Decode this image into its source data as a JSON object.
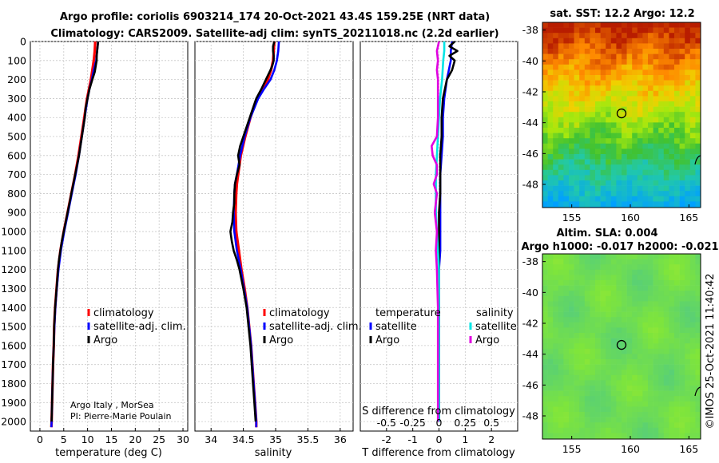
{
  "title_line1": "Argo profile: coriolis 6903214_174 20-Oct-2021 43.4S 159.25E (NRT data)",
  "title_line2": "Climatology: CARS2009. Satellite-adj clim: synTS_20211018.nc (2.2d earlier)",
  "depth_ticks": [
    "0",
    "100",
    "200",
    "300",
    "400",
    "500",
    "600",
    "700",
    "800",
    "900",
    "1000",
    "1100",
    "1200",
    "1300",
    "1400",
    "1500",
    "1600",
    "1700",
    "1800",
    "1900",
    "2000"
  ],
  "credits": {
    "line1": "Argo Italy , MorSea",
    "line2": "PI: Pierre-Marie Poulain"
  },
  "colors": {
    "climatology": "#ff0000",
    "satellite": "#0000ff",
    "argo": "#000000",
    "t_diff": "#00e5e5",
    "s_diff": "#e000e0"
  },
  "chart_data": [
    {
      "type": "line",
      "name": "temperature-profile",
      "xlabel": "temperature (deg C)",
      "ylabel": "depth",
      "xlim": [
        -2,
        31
      ],
      "ylim": [
        2050,
        0
      ],
      "xticks": [
        "0",
        "5",
        "10",
        "15",
        "20",
        "25",
        "30"
      ],
      "legend": [
        "climatology",
        "satellite-adj. clim.",
        "Argo"
      ],
      "series": [
        {
          "name": "climatology",
          "depth": [
            0,
            50,
            100,
            150,
            200,
            250,
            300,
            350,
            400,
            500,
            600,
            700,
            800,
            900,
            1000,
            1100,
            1200,
            1300,
            1400,
            1500,
            1600,
            1700,
            1800,
            1900,
            2000,
            2030
          ],
          "values": [
            11.6,
            11.5,
            11.3,
            11.0,
            10.7,
            10.3,
            9.9,
            9.6,
            9.3,
            8.7,
            8.1,
            7.4,
            6.6,
            5.8,
            5.0,
            4.3,
            3.8,
            3.5,
            3.2,
            3.0,
            2.9,
            2.75,
            2.65,
            2.55,
            2.45,
            2.4
          ]
        },
        {
          "name": "satellite-adj. clim.",
          "depth": [
            0,
            50,
            100,
            150,
            200,
            250,
            300,
            350,
            400,
            500,
            600,
            700,
            800,
            900,
            1000,
            1100,
            1200,
            1300,
            1400,
            1500,
            1600,
            1700,
            1800,
            1900,
            2000,
            2030
          ],
          "values": [
            12.2,
            12.0,
            11.8,
            11.3,
            10.9,
            10.4,
            10.0,
            9.7,
            9.4,
            8.8,
            8.2,
            7.5,
            6.7,
            5.9,
            5.1,
            4.4,
            3.9,
            3.55,
            3.25,
            3.05,
            2.9,
            2.75,
            2.65,
            2.55,
            2.45,
            2.4
          ]
        },
        {
          "name": "Argo",
          "depth": [
            0,
            25,
            50,
            75,
            100,
            130,
            160,
            200,
            250,
            300,
            350,
            400,
            450,
            500,
            550,
            600,
            650,
            700,
            750,
            800,
            850,
            900,
            950,
            1000,
            1050,
            1100,
            1150,
            1200,
            1300,
            1400,
            1500,
            1600,
            1700,
            1800,
            1900,
            2000
          ],
          "values": [
            12.2,
            12.1,
            12.0,
            11.9,
            11.9,
            11.7,
            11.5,
            11.0,
            10.4,
            10.0,
            9.6,
            9.4,
            9.1,
            8.8,
            8.5,
            8.2,
            7.8,
            7.4,
            7.0,
            6.6,
            6.2,
            5.8,
            5.4,
            5.0,
            4.6,
            4.3,
            4.0,
            3.8,
            3.5,
            3.2,
            3.0,
            2.9,
            2.75,
            2.65,
            2.55,
            2.45
          ]
        }
      ]
    },
    {
      "type": "line",
      "name": "salinity-profile",
      "xlabel": "salinity",
      "ylabel": "depth",
      "xlim": [
        33.75,
        36.2
      ],
      "ylim": [
        2050,
        0
      ],
      "xticks": [
        "34",
        "34.5",
        "35",
        "35.5",
        "36"
      ],
      "legend": [
        "climatology",
        "satellite-adj. clim.",
        "Argo"
      ],
      "series": [
        {
          "name": "climatology",
          "depth": [
            0,
            50,
            100,
            150,
            200,
            250,
            300,
            350,
            400,
            500,
            600,
            700,
            750,
            800,
            900,
            1000,
            1100,
            1200,
            1300,
            1400,
            1500,
            1600,
            1700,
            1800,
            1900,
            2000,
            2030
          ],
          "values": [
            34.98,
            34.97,
            34.96,
            34.93,
            34.88,
            34.8,
            34.72,
            34.66,
            34.61,
            34.53,
            34.46,
            34.42,
            34.4,
            34.39,
            34.38,
            34.39,
            34.43,
            34.47,
            34.52,
            34.56,
            34.59,
            34.62,
            34.64,
            34.66,
            34.68,
            34.7,
            34.7
          ]
        },
        {
          "name": "satellite-adj. clim.",
          "depth": [
            0,
            50,
            100,
            150,
            200,
            250,
            300,
            350,
            400,
            500,
            600,
            700,
            750,
            800,
            900,
            1000,
            1100,
            1200,
            1300,
            1400,
            1500,
            1600,
            1700,
            1800,
            1900,
            2000,
            2030
          ],
          "values": [
            35.05,
            35.04,
            35.02,
            34.98,
            34.92,
            34.82,
            34.73,
            34.67,
            34.61,
            34.52,
            34.45,
            34.4,
            34.37,
            34.36,
            34.35,
            34.36,
            34.4,
            34.46,
            34.51,
            34.56,
            34.59,
            34.62,
            34.64,
            34.66,
            34.68,
            34.7,
            34.7
          ]
        },
        {
          "name": "Argo",
          "depth": [
            0,
            25,
            50,
            75,
            100,
            125,
            150,
            200,
            250,
            300,
            350,
            400,
            450,
            500,
            550,
            600,
            650,
            700,
            750,
            800,
            850,
            900,
            950,
            1000,
            1050,
            1100,
            1150,
            1200,
            1300,
            1400,
            1500,
            1600,
            1700,
            1800,
            1900,
            2000
          ],
          "values": [
            34.98,
            34.96,
            34.96,
            34.97,
            34.97,
            34.95,
            34.92,
            34.85,
            34.78,
            34.7,
            34.65,
            34.6,
            34.55,
            34.5,
            34.45,
            34.42,
            34.44,
            34.4,
            34.37,
            34.36,
            34.36,
            34.34,
            34.33,
            34.3,
            34.32,
            34.35,
            34.4,
            34.44,
            34.5,
            34.55,
            34.58,
            34.61,
            34.63,
            34.65,
            34.67,
            34.69
          ]
        }
      ]
    },
    {
      "type": "line",
      "name": "difference-profile",
      "xlabel": "T difference from climatology",
      "x2label": "S difference from climatology",
      "ylabel": "depth",
      "xlim": [
        -3,
        3
      ],
      "ylim": [
        2050,
        0
      ],
      "xticks": [
        "-2",
        "-1",
        "0",
        "1",
        "2"
      ],
      "x2ticks": [
        "-0.5",
        "-0.25",
        "0",
        "0.25",
        "0.5"
      ],
      "x2lim": [
        -0.75,
        0.75
      ],
      "legend_titles": [
        "temperature",
        "salinity"
      ],
      "legend": [
        "satellite",
        "Argo",
        "satellite",
        "Argo"
      ],
      "series": [
        {
          "name": "temperature satellite",
          "depth": [
            0,
            50,
            100,
            200,
            300,
            400,
            500,
            600,
            700,
            800,
            900,
            1000,
            1100,
            1200,
            1400,
            1600,
            1800,
            2000
          ],
          "values": [
            0.5,
            0.45,
            0.45,
            0.3,
            0.2,
            0.15,
            0.15,
            0.1,
            0.05,
            0.05,
            0.05,
            0.05,
            0.05,
            0.0,
            0.0,
            0.0,
            0.0,
            0.0
          ]
        },
        {
          "name": "temperature Argo",
          "depth": [
            0,
            25,
            50,
            75,
            100,
            150,
            200,
            300,
            400,
            500,
            600,
            700,
            800,
            900,
            1000,
            1100,
            1200,
            1400,
            1600,
            1800,
            2000
          ],
          "values": [
            0.6,
            0.4,
            0.7,
            0.4,
            0.6,
            0.5,
            0.3,
            0.15,
            0.1,
            0.1,
            0.05,
            0.05,
            0.05,
            0.0,
            0.0,
            0.0,
            0.0,
            0.0,
            0.0,
            0.0,
            0.0
          ]
        },
        {
          "name": "salinity satellite",
          "depth": [
            0,
            50,
            100,
            200,
            300,
            400,
            500,
            600,
            700,
            800,
            900,
            1000,
            1100,
            1200,
            1400,
            1600,
            1800,
            2000
          ],
          "values": [
            0.05,
            0.05,
            0.04,
            0.03,
            0.01,
            0.0,
            -0.01,
            -0.02,
            -0.03,
            -0.03,
            -0.03,
            -0.02,
            -0.01,
            0.0,
            0.0,
            0.0,
            0.0,
            0.0
          ]
        },
        {
          "name": "salinity Argo",
          "depth": [
            0,
            50,
            100,
            150,
            200,
            300,
            400,
            500,
            550,
            600,
            650,
            700,
            750,
            800,
            900,
            1000,
            1100,
            1200,
            1400,
            1600,
            1800,
            2000
          ],
          "values": [
            0.0,
            -0.02,
            -0.01,
            -0.02,
            -0.01,
            -0.01,
            -0.01,
            -0.02,
            -0.07,
            -0.06,
            -0.02,
            -0.02,
            -0.05,
            -0.02,
            -0.04,
            -0.02,
            -0.03,
            -0.02,
            -0.01,
            -0.01,
            -0.01,
            -0.01
          ]
        }
      ]
    },
    {
      "type": "heatmap",
      "name": "sst-map",
      "title": "sat. SST: 12.2 Argo: 12.2",
      "xlim": [
        152.5,
        166
      ],
      "ylim": [
        -49.5,
        -37.5
      ],
      "xticks": [
        "155",
        "160",
        "165"
      ],
      "yticks": [
        "-38",
        "-40",
        "-42",
        "-44",
        "-46",
        "-48"
      ],
      "marker": {
        "lon": 159.25,
        "lat": -43.4
      }
    },
    {
      "type": "heatmap",
      "name": "sla-map",
      "title_line1": "Altim. SLA: 0.004",
      "title_line2": "Argo h1000: -0.017 h2000: -0.021",
      "xlim": [
        152.5,
        166
      ],
      "ylim": [
        -49.5,
        -37.5
      ],
      "xticks": [
        "155",
        "160",
        "165"
      ],
      "yticks": [
        "-38",
        "-40",
        "-42",
        "-44",
        "-46",
        "-48"
      ],
      "marker": {
        "lon": 159.25,
        "lat": -43.4
      },
      "stamp": "©IMOS 25-Oct-2021 11:40:42"
    }
  ]
}
